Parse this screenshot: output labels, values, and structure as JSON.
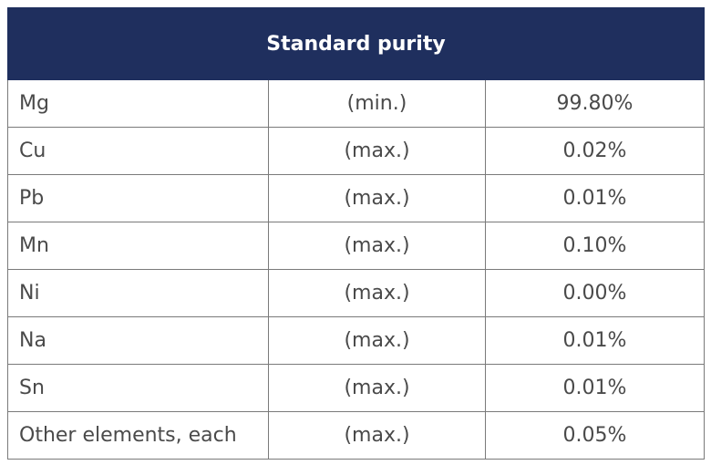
{
  "header": {
    "title": "Standard purity"
  },
  "table": {
    "rows": [
      [
        "Mg",
        "(min.)",
        "99.80%"
      ],
      [
        "Cu",
        "(max.)",
        "0.02%"
      ],
      [
        "Pb",
        "(max.)",
        "0.01%"
      ],
      [
        "Mn",
        "(max.)",
        "0.10%"
      ],
      [
        "Ni",
        "(max.)",
        "0.00%"
      ],
      [
        "Na",
        "(max.)",
        "0.01%"
      ],
      [
        "Sn",
        "(max.)",
        "0.01%"
      ],
      [
        "Other elements, each",
        "(max.)",
        "0.05%"
      ]
    ]
  }
}
